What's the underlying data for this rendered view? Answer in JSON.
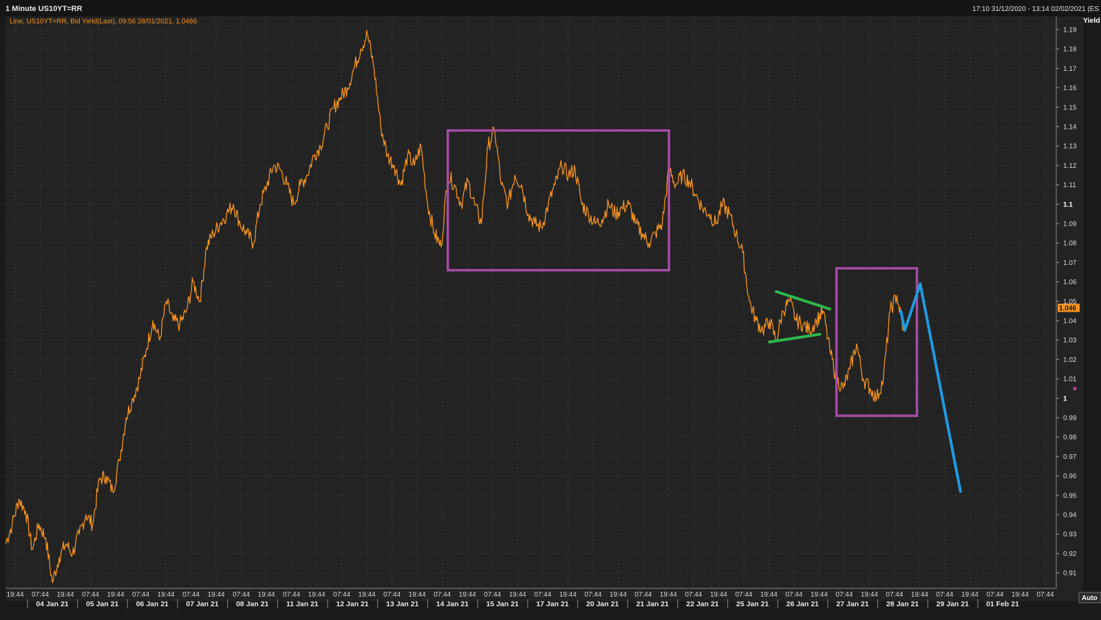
{
  "header": {
    "title": "1 Minute US10YT=RR",
    "range": "17:10 31/12/2020 - 13:14 02/02/2021 (ES"
  },
  "legend": {
    "text": "Line, US10YT=RR, Bid Yield(Last), 09:56 28/01/2021, 1.0466"
  },
  "axis": {
    "y_title": "Yield",
    "auto_label": "Auto",
    "last_value_label": "1.046"
  },
  "colors": {
    "background": "#1a1a1a",
    "plot_background": "#232323",
    "grid": "#3a3a3a",
    "line": "#f7931e",
    "box": "#a64ca6",
    "triangle": "#2db84d",
    "projection": "#1e9be0"
  },
  "chart_data": {
    "type": "line",
    "title": "",
    "ylabel": "Yield",
    "ylim": [
      0.905,
      1.195
    ],
    "y_ticks": [
      1.19,
      1.18,
      1.17,
      1.16,
      1.15,
      1.14,
      1.13,
      1.12,
      1.11,
      1.1,
      1.09,
      1.08,
      1.07,
      1.06,
      1.05,
      1.04,
      1.03,
      1.02,
      1.01,
      1,
      0.99,
      0.98,
      0.97,
      0.96,
      0.95,
      0.94,
      0.93,
      0.92,
      0.91
    ],
    "y_tick_labels": [
      "1.19",
      "1.18",
      "1.17",
      "1.16",
      "1.15",
      "1.14",
      "1.13",
      "1.12",
      "1.11",
      "1.1",
      "1.09",
      "1.08",
      "1.07",
      "1.06",
      "1.05",
      "1.04",
      "1.03",
      "1.02",
      "1.01",
      "1",
      "0.99",
      "0.98",
      "0.97",
      "0.96",
      "0.95",
      "0.94",
      "0.93",
      "0.92",
      "0.91"
    ],
    "x_time_labels": [
      "19:44",
      "07:44",
      "19:44",
      "07:44",
      "19:44",
      "07:44",
      "19:44",
      "07:44",
      "19:44",
      "07:44",
      "19:44",
      "07:44",
      "19:44",
      "07:44",
      "19:44",
      "07:44",
      "19:44",
      "07:44",
      "19:44",
      "07:44",
      "19:44",
      "07:44",
      "19:44",
      "07:44",
      "19:44",
      "07:44",
      "19:44",
      "07:44",
      "19:44",
      "07:44",
      "19:44",
      "07:44",
      "19:44",
      "07:44",
      "19:44",
      "07:44",
      "19:44",
      "07:44",
      "19:44",
      "07:44",
      "19:44",
      "07:44"
    ],
    "x_date_labels": [
      "04 Jan 21",
      "05 Jan 21",
      "06 Jan 21",
      "07 Jan 21",
      "08 Jan 21",
      "11 Jan 21",
      "12 Jan 21",
      "13 Jan 21",
      "14 Jan 21",
      "15 Jan 21",
      "17 Jan 21",
      "20 Jan 21",
      "21 Jan 21",
      "22 Jan 21",
      "25 Jan 21",
      "26 Jan 21",
      "27 Jan 21",
      "28 Jan 21",
      "29 Jan 21",
      "01 Feb 21"
    ],
    "series": [
      {
        "values": [
          0.925,
          0.935,
          0.948,
          0.942,
          0.922,
          0.935,
          0.928,
          0.905,
          0.918,
          0.925,
          0.92,
          0.93,
          0.94,
          0.935,
          0.958,
          0.96,
          0.952,
          0.968,
          0.99,
          1.0,
          1.01,
          1.025,
          1.04,
          1.03,
          1.05,
          1.04,
          1.038,
          1.045,
          1.06,
          1.05,
          1.078,
          1.085,
          1.09,
          1.095,
          1.1,
          1.09,
          1.085,
          1.08,
          1.1,
          1.11,
          1.12,
          1.118,
          1.11,
          1.1,
          1.11,
          1.115,
          1.125,
          1.13,
          1.14,
          1.15,
          1.155,
          1.16,
          1.17,
          1.18,
          1.188,
          1.17,
          1.14,
          1.125,
          1.12,
          1.11,
          1.125,
          1.12,
          1.13,
          1.1,
          1.085,
          1.078,
          1.115,
          1.11,
          1.1,
          1.112,
          1.1,
          1.09,
          1.13,
          1.138,
          1.11,
          1.1,
          1.115,
          1.11,
          1.095,
          1.09,
          1.088,
          1.1,
          1.11,
          1.12,
          1.115,
          1.118,
          1.1,
          1.095,
          1.09,
          1.092,
          1.1,
          1.095,
          1.098,
          1.1,
          1.09,
          1.085,
          1.08,
          1.085,
          1.09,
          1.118,
          1.11,
          1.115,
          1.112,
          1.105,
          1.098,
          1.095,
          1.09,
          1.1,
          1.095,
          1.085,
          1.075,
          1.05,
          1.04,
          1.035,
          1.04,
          1.03,
          1.045,
          1.05,
          1.04,
          1.038,
          1.035,
          1.04,
          1.045,
          1.025,
          1.01,
          1.005,
          1.015,
          1.028,
          1.01,
          1.005,
          1.0,
          1.01,
          1.045,
          1.053,
          1.035
        ]
      }
    ],
    "annotations": {
      "range_boxes": [
        {
          "x_start_index": 66,
          "x_end_index": 99,
          "y_top": 1.138,
          "y_bottom": 1.066
        },
        {
          "x_start_index": 124,
          "x_end_index": 136,
          "y_top": 1.067,
          "y_bottom": 0.991
        }
      ],
      "triangle_lines": [
        [
          {
            "x_index": 115,
            "y": 1.055
          },
          {
            "x_index": 123,
            "y": 1.046
          }
        ],
        [
          {
            "x_index": 114,
            "y": 1.029
          },
          {
            "x_index": 121.5,
            "y": 1.033
          }
        ]
      ],
      "projection_path": [
        {
          "x_index": 133.6,
          "y": 1.045
        },
        {
          "x_index": 134.2,
          "y": 1.035
        },
        {
          "x_index": 136.5,
          "y": 1.059
        },
        {
          "x_index": 142.5,
          "y": 0.952
        }
      ]
    }
  }
}
